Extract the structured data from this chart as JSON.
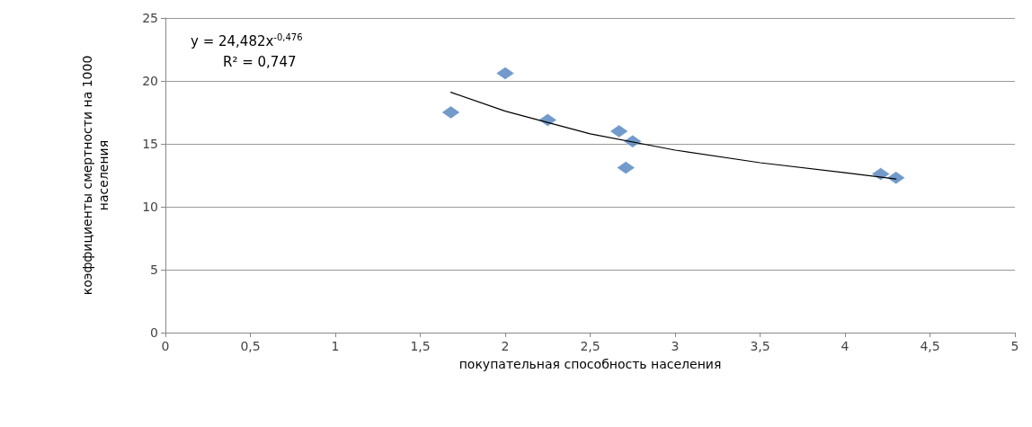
{
  "chart_data": {
    "type": "scatter",
    "xlabel": "покупательная способность населения",
    "ylabel": "коэффициенты смертности на 1000 населения",
    "annotations": [
      "y = 24,482x$^{-0,476}$",
      "R² = 0,747"
    ],
    "series": [
      {
        "color": "#4f81bd",
        "marker": "diamond",
        "x": [
          1.68,
          2.0,
          2.25,
          2.67,
          2.75,
          2.71,
          4.21,
          4.3
        ],
        "values": [
          17.5,
          20.6,
          16.9,
          16.0,
          15.2,
          13.1,
          12.6,
          12.3
        ]
      },
      {
        "type": "line",
        "color": "#000000",
        "marker": "none",
        "line_style": "solid",
        "x": [
          1.68,
          2.0,
          2.5,
          3.0,
          3.5,
          4.0,
          4.3
        ],
        "values": [
          19.1,
          17.6,
          15.8,
          14.5,
          13.5,
          12.7,
          12.2
        ]
      }
    ],
    "xlim": [
      0,
      5
    ],
    "xticks": [
      0,
      {
        "value": 0.5,
        "label": "0,5"
      },
      1,
      {
        "value": 1.5,
        "label": "1,5"
      },
      2,
      {
        "value": 2.5,
        "label": "2,5"
      },
      3,
      {
        "value": 3.5,
        "label": "3,5"
      },
      4,
      {
        "value": 4.5,
        "label": "4,5"
      },
      5
    ],
    "ylim": [
      0,
      25
    ],
    "yticks": [
      0,
      5,
      10,
      15,
      20,
      25
    ],
    "grid": "y"
  }
}
